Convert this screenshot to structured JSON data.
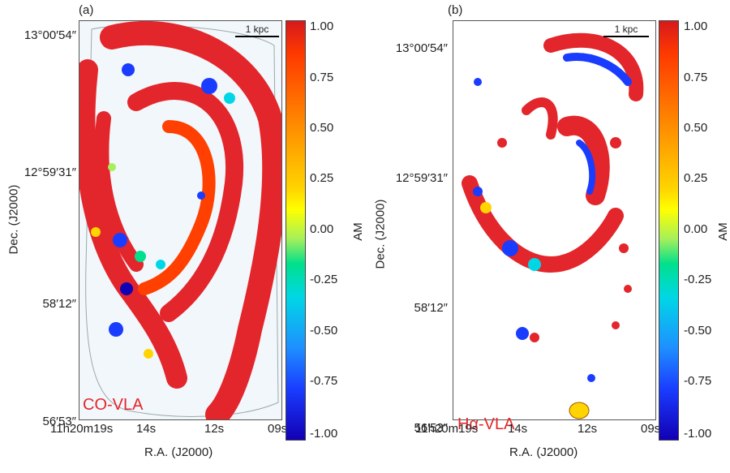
{
  "chart_data": [
    {
      "type": "heatmap",
      "panel_label": "(a)",
      "title": "",
      "corner_label": "CO-VLA",
      "scalebar_label": "1 kpc",
      "xlabel": "R.A. (J2000)",
      "ylabel": "Dec. (J2000)",
      "x_ticks": [
        "11h20m19s",
        "14s",
        "12s",
        "09s"
      ],
      "y_ticks": [
        "13°00′54″",
        "12°59′31″",
        "58′12″",
        "56′53″"
      ],
      "colorbar": {
        "label": "AM",
        "range": [
          -1.0,
          1.0
        ],
        "ticks": [
          "1.00",
          "0.75",
          "0.50",
          "0.25",
          "0.00",
          "-0.25",
          "-0.50",
          "-0.75",
          "-1.00"
        ]
      }
    },
    {
      "type": "heatmap",
      "panel_label": "(b)",
      "title": "",
      "corner_label": "Hα-VLA",
      "scalebar_label": "1 kpc",
      "xlabel": "R.A. (J2000)",
      "ylabel": "Dec. (J2000)",
      "x_ticks": [
        "11h20m19s",
        "14s",
        "12s",
        "09s"
      ],
      "y_ticks": [
        "13°00′54″",
        "12°59′31″",
        "58′12″",
        "56′53″"
      ],
      "colorbar": {
        "label": "AM",
        "range": [
          -1.0,
          1.0
        ],
        "ticks": [
          "1.00",
          "0.75",
          "0.50",
          "0.25",
          "0.00",
          "-0.25",
          "-0.50",
          "-0.75",
          "-1.00"
        ]
      }
    }
  ],
  "colors": {
    "high": "#e3262b",
    "mid": "#ffff00",
    "low": "#1200b4",
    "background_a": "#f2f7fb",
    "label_red": "#e3262b"
  }
}
